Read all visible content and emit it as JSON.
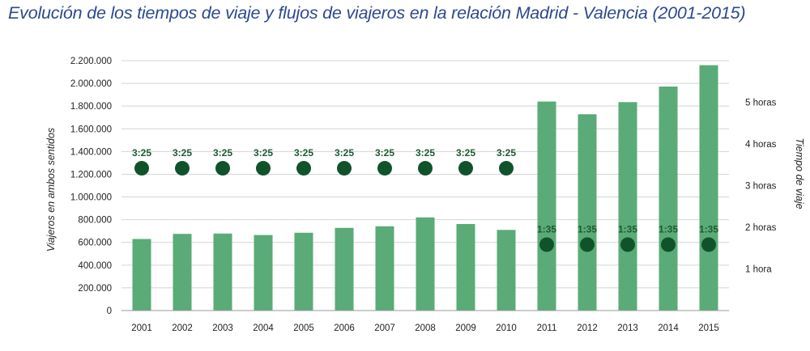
{
  "title": "Evolución de los tiempos de viaje y flujos de viajeros en la relación Madrid - Valencia (2001-2015)",
  "colors": {
    "bar": "#5aab77",
    "dot": "#10532b",
    "dot_label": "#1f5a32",
    "grid": "#d4d4d4",
    "title": "#2b4a8e"
  },
  "chart_data": {
    "type": "bar",
    "categories": [
      "2001",
      "2002",
      "2003",
      "2004",
      "2005",
      "2006",
      "2007",
      "2008",
      "2009",
      "2010",
      "2011",
      "2012",
      "2013",
      "2014",
      "2015"
    ],
    "series": [
      {
        "axis": "left",
        "values": [
          630000,
          675000,
          678000,
          665000,
          685000,
          728000,
          742000,
          820000,
          762000,
          710000,
          1840000,
          1728000,
          1835000,
          1972000,
          2160000
        ]
      },
      {
        "axis": "right",
        "type": "scatter",
        "values_hours": [
          3.4167,
          3.4167,
          3.4167,
          3.4167,
          3.4167,
          3.4167,
          3.4167,
          3.4167,
          3.4167,
          3.4167,
          1.5833,
          1.5833,
          1.5833,
          1.5833,
          1.5833
        ],
        "labels": [
          "3:25",
          "3:25",
          "3:25",
          "3:25",
          "3:25",
          "3:25",
          "3:25",
          "3:25",
          "3:25",
          "3:25",
          "1:35",
          "1:35",
          "1:35",
          "1:35",
          "1:35"
        ]
      }
    ],
    "ylabel": "Viajeros en ambos sentidos",
    "ylim": [
      0,
      2200000
    ],
    "yticks": [
      0,
      200000,
      400000,
      600000,
      800000,
      1000000,
      1200000,
      1400000,
      1600000,
      1800000,
      2000000,
      2200000
    ],
    "ytick_labels": [
      "0",
      "200.000",
      "400.000",
      "600.000",
      "800.000",
      "1.000.000",
      "1.200.000",
      "1.400.000",
      "1.600.000",
      "1.800.000",
      "2.000.000",
      "2.200.000"
    ],
    "y2label": "Tiempo de viaje",
    "y2lim": [
      0,
      6
    ],
    "y2ticks": [
      1,
      2,
      3,
      4,
      5
    ],
    "y2tick_labels": [
      "1 hora",
      "2 horas",
      "3 horas",
      "4 horas",
      "5 horas"
    ],
    "grid": true
  }
}
